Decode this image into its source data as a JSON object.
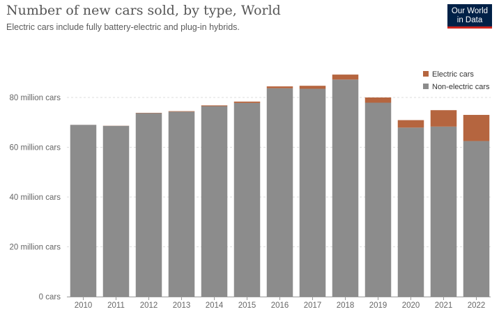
{
  "header": {
    "title": "Number of new cars sold, by type, World",
    "subtitle": "Electric cars include fully battery-electric and plug-in hybrids.",
    "logo_line1": "Our World",
    "logo_line2": "in Data"
  },
  "chart_data": {
    "type": "bar",
    "stacked": true,
    "categories": [
      "2010",
      "2011",
      "2012",
      "2013",
      "2014",
      "2015",
      "2016",
      "2017",
      "2018",
      "2019",
      "2020",
      "2021",
      "2022"
    ],
    "series": [
      {
        "name": "Non-electric cars",
        "color": "#8c8c8c",
        "values": [
          69,
          68.6,
          73.7,
          74.3,
          76.5,
          77.8,
          83.7,
          83.5,
          87.2,
          77.9,
          67.9,
          68.3,
          62.5
        ]
      },
      {
        "name": "Electric cars",
        "color": "#b5653f",
        "values": [
          0.01,
          0.05,
          0.13,
          0.2,
          0.32,
          0.55,
          0.75,
          1.2,
          2.0,
          2.1,
          3.0,
          6.6,
          10.5
        ]
      }
    ],
    "y_ticks": [
      {
        "value": 0,
        "label": "0 cars"
      },
      {
        "value": 20,
        "label": "20 million cars"
      },
      {
        "value": 40,
        "label": "40 million cars"
      },
      {
        "value": 60,
        "label": "60 million cars"
      },
      {
        "value": 80,
        "label": "80 million cars"
      }
    ],
    "ylim": [
      0,
      90
    ],
    "unit": "million cars",
    "grid": "horizontal dotted",
    "legend": {
      "position": "top-right",
      "entries": [
        "Electric cars",
        "Non-electric cars"
      ]
    }
  }
}
